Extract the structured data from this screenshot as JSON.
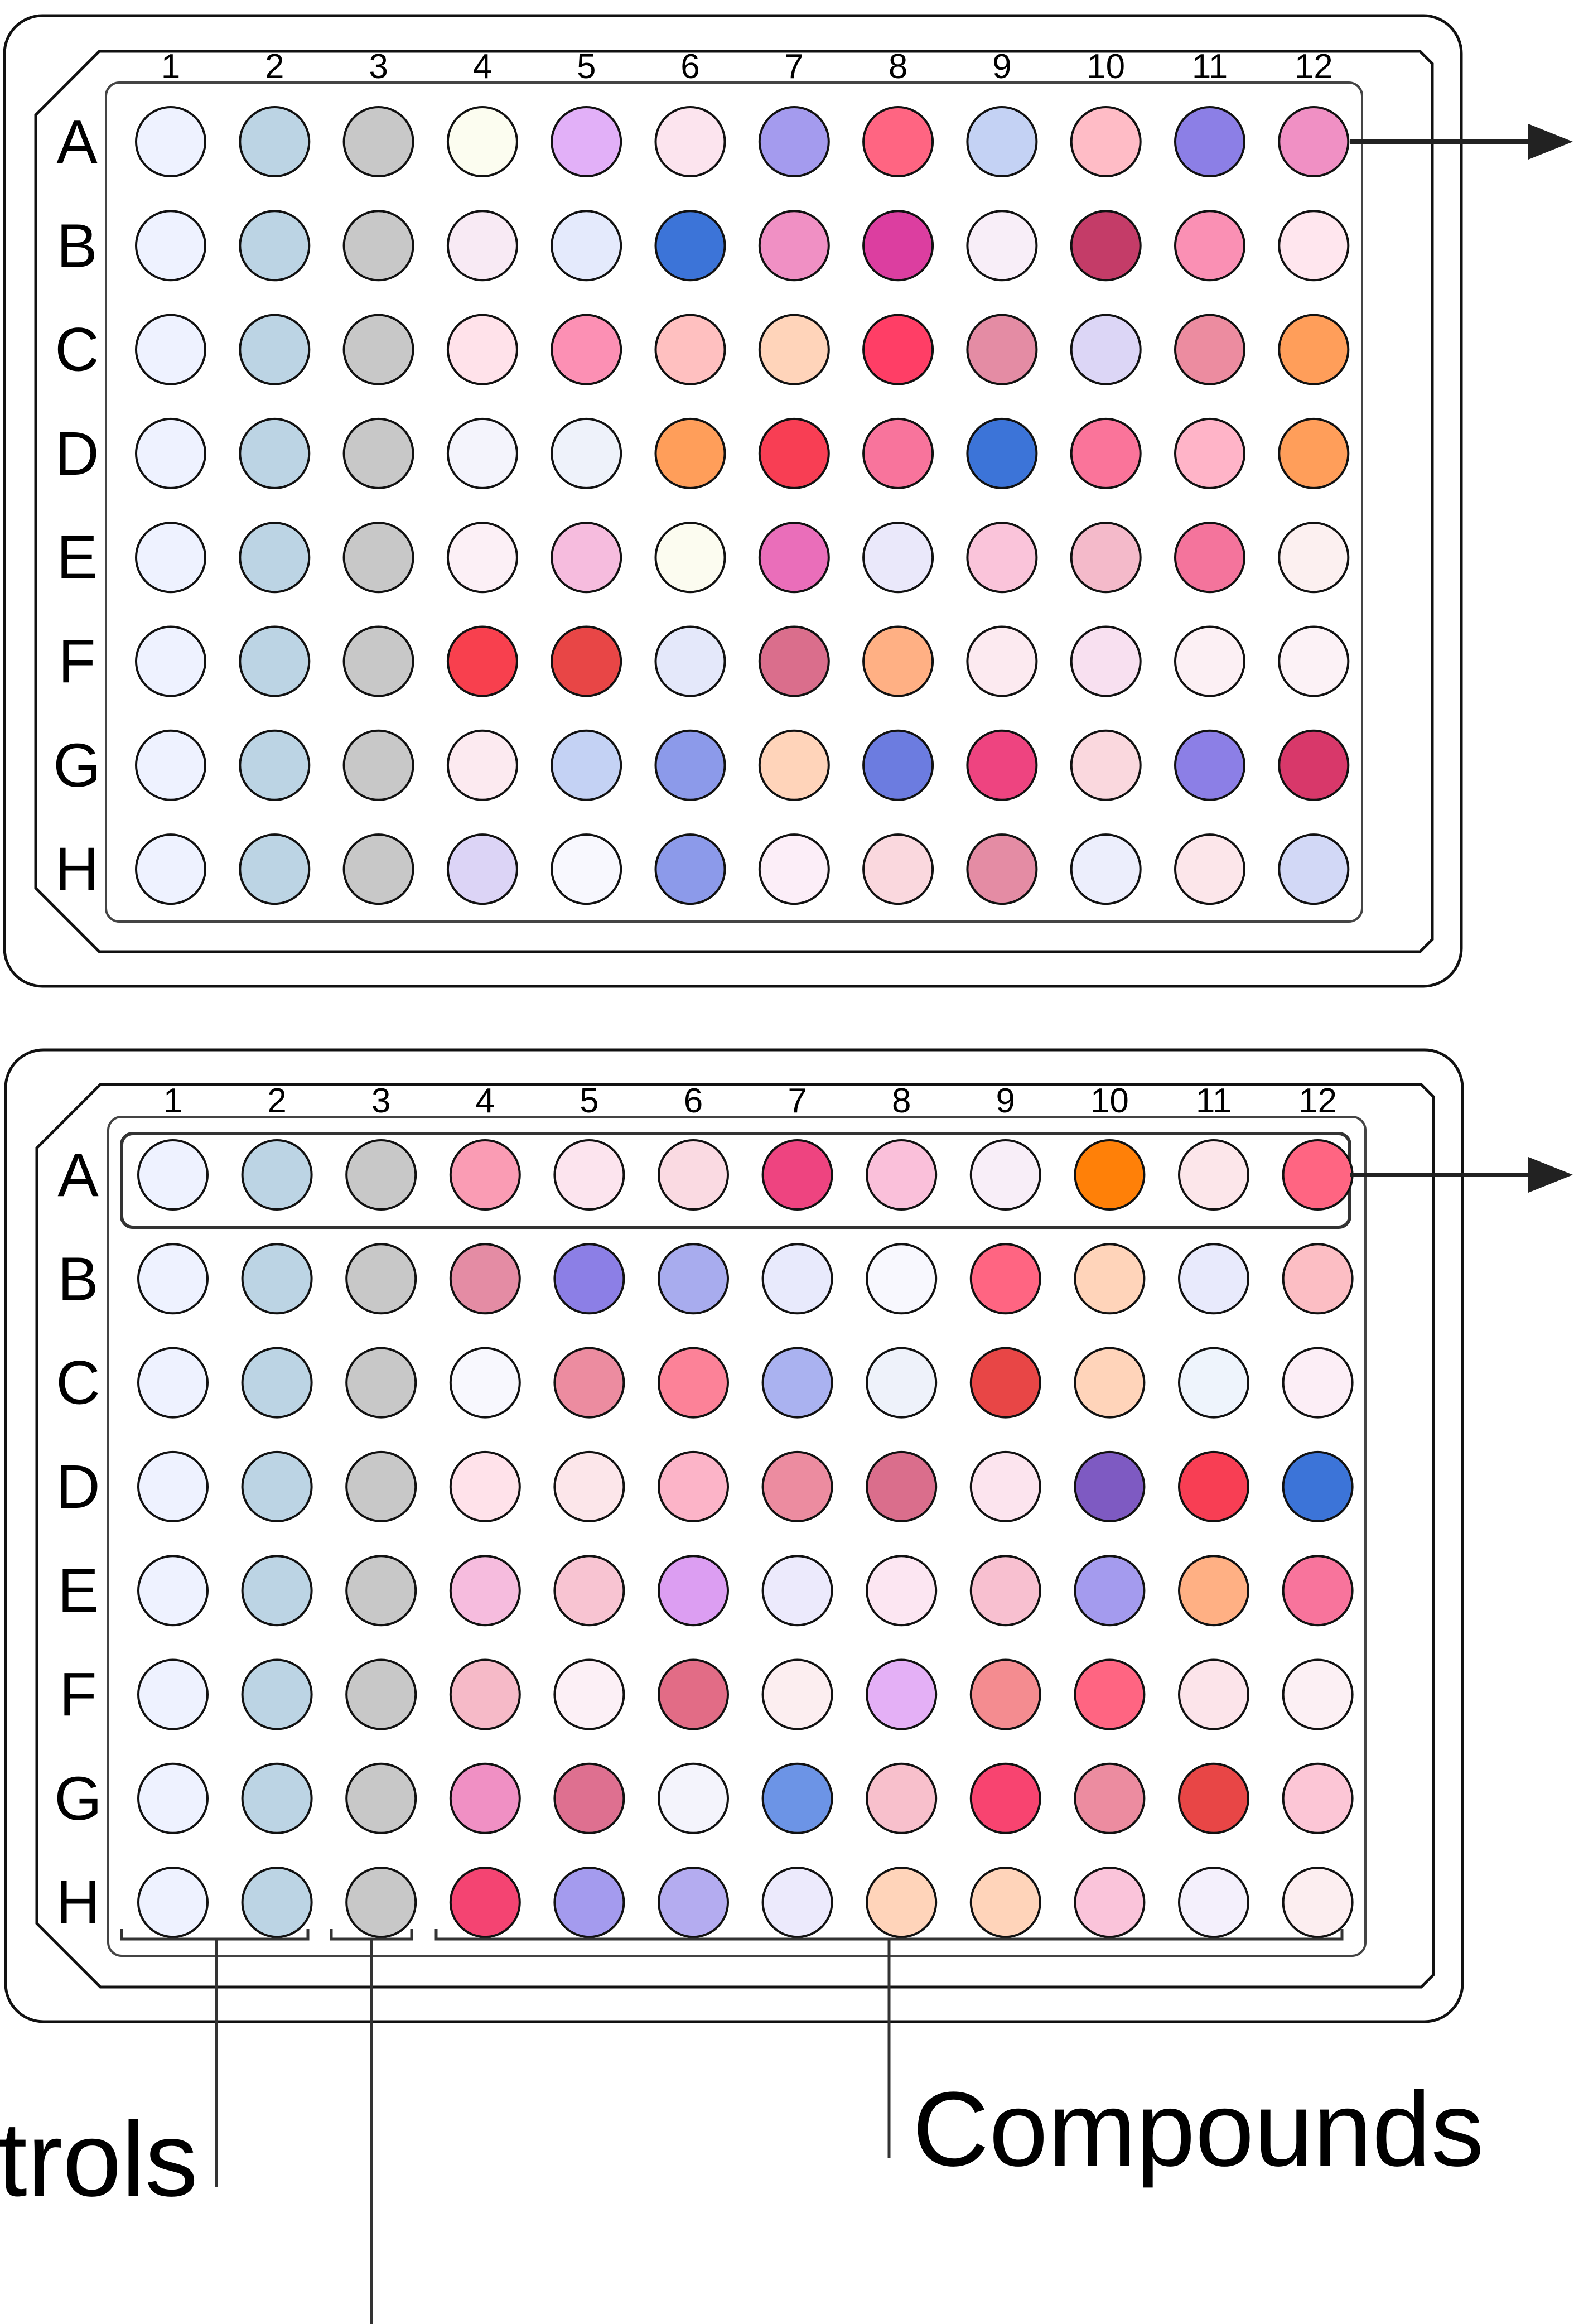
{
  "plates": [
    {
      "name": "plate-top",
      "column_labels": [
        "1",
        "2",
        "3",
        "4",
        "5",
        "6",
        "7",
        "8",
        "9",
        "10",
        "11",
        "12"
      ],
      "row_labels": [
        "A",
        "B",
        "C",
        "D",
        "E",
        "F",
        "G",
        "H"
      ],
      "wells": [
        [
          "#EEF2FF",
          "#BCD4E4",
          "#C8C8C8",
          "#FCFDF0",
          "#E2B0F8",
          "#FCE4EE",
          "#A49BEE",
          "#FF6582",
          "#C4D2F4",
          "#FFBCC6",
          "#8C7FE6",
          "#F090C4"
        ],
        [
          "#EEF2FF",
          "#BCD4E4",
          "#C8C8C8",
          "#F8EAF4",
          "#E4EAFC",
          "#3C74D8",
          "#F090C4",
          "#DC3EA0",
          "#F8EEF8",
          "#C43C68",
          "#FA90B4",
          "#FFE6EE"
        ],
        [
          "#EEF2FF",
          "#BCD4E4",
          "#C8C8C8",
          "#FFE2EA",
          "#FC90B4",
          "#FFC0C0",
          "#FFD4BA",
          "#FF3E66",
          "#E48CA4",
          "#DCD6F6",
          "#EC8CA0",
          "#FF9E5A"
        ],
        [
          "#EEF2FF",
          "#BCD4E4",
          "#C8C8C8",
          "#F4F4FC",
          "#EEF2FA",
          "#FF9E5A",
          "#F83E54",
          "#F8749C",
          "#3C74D8",
          "#FA749A",
          "#FFB4C8",
          "#FF9E5A"
        ],
        [
          "#EEF2FF",
          "#BCD4E4",
          "#C8C8C8",
          "#FCF0F6",
          "#F6BCDE",
          "#FCFCF0",
          "#EA6EBA",
          "#EAE8FA",
          "#FAC4DA",
          "#F4BACA",
          "#F4749C",
          "#FCF0F0"
        ],
        [
          "#EEF2FF",
          "#BCD4E4",
          "#C8C8C8",
          "#F8404E",
          "#E84646",
          "#E4E8FA",
          "#DA6E8C",
          "#FFB084",
          "#FCEAF0",
          "#F8E0F0",
          "#FCF0F4",
          "#FCF2F6"
        ],
        [
          "#EEF2FF",
          "#BCD4E4",
          "#C8C8C8",
          "#FCEAF0",
          "#C4D2F4",
          "#8C9AEA",
          "#FFD4BA",
          "#6C7CE0",
          "#EE4480",
          "#FAD8DE",
          "#8C7FE6",
          "#D8386A"
        ],
        [
          "#EEF2FF",
          "#BCD4E4",
          "#C8C8C8",
          "#DCD4F6",
          "#F8F8FE",
          "#8C9AEA",
          "#FCEEF8",
          "#FAD8DE",
          "#E48CA4",
          "#ECEEFC",
          "#FCE6EA",
          "#D2D8F6"
        ]
      ]
    },
    {
      "name": "plate-bottom",
      "column_labels": [
        "1",
        "2",
        "3",
        "4",
        "5",
        "6",
        "7",
        "8",
        "9",
        "10",
        "11",
        "12"
      ],
      "row_labels": [
        "A",
        "B",
        "C",
        "D",
        "E",
        "F",
        "G",
        "H"
      ],
      "wells": [
        [
          "#EEF2FF",
          "#BCD4E4",
          "#C8C8C8",
          "#FA9CB4",
          "#FCE4EE",
          "#FADAE2",
          "#EE4480",
          "#FAC0DA",
          "#F8EEF8",
          "#FF8008",
          "#FCE6EA",
          "#FF6582"
        ],
        [
          "#EEF2FF",
          "#BCD4E4",
          "#C8C8C8",
          "#E48CA4",
          "#8C7FE6",
          "#A8ACEE",
          "#E8EAFC",
          "#F8F8FE",
          "#FF6582",
          "#FFD4BA",
          "#E8EAFC",
          "#FCBEC4"
        ],
        [
          "#EEF2FF",
          "#BCD4E4",
          "#C8C8C8",
          "#F8F8FE",
          "#EC8CA0",
          "#FC8298",
          "#AAB2F0",
          "#EEF2FA",
          "#E84646",
          "#FFD4BA",
          "#EEF4FC",
          "#FCEEF6"
        ],
        [
          "#EEF2FF",
          "#BCD4E4",
          "#C8C8C8",
          "#FFE2EA",
          "#FCE6EA",
          "#FCB4C8",
          "#EC8CA0",
          "#DA6E8C",
          "#FCE4EE",
          "#7E5AC2",
          "#F83E54",
          "#3C74D8"
        ],
        [
          "#EEF2FF",
          "#BCD4E4",
          "#C8C8C8",
          "#F6BCDE",
          "#F8C4D2",
          "#DC9EF2",
          "#ECEAFC",
          "#FCE6F2",
          "#F8C0D0",
          "#A49BEE",
          "#FFB084",
          "#F8749C"
        ],
        [
          "#EEF2FF",
          "#BCD4E4",
          "#C8C8C8",
          "#F6BAC8",
          "#FCF0F6",
          "#E26C86",
          "#FCEEF0",
          "#E4B0F6",
          "#F48C90",
          "#FF6582",
          "#FCE4EA",
          "#FCF0F4"
        ],
        [
          "#EEF2FF",
          "#BCD4E4",
          "#C8C8C8",
          "#F090C4",
          "#DE7090",
          "#F4F4FC",
          "#6C94E6",
          "#F8C0CC",
          "#F84470",
          "#EC8CA0",
          "#E84646",
          "#FCC6D6"
        ],
        [
          "#EEF2FF",
          "#BCD4E4",
          "#C8C8C8",
          "#F44472",
          "#A49BEE",
          "#B4ACF0",
          "#ECEAFC",
          "#FFD4BA",
          "#FFD4BA",
          "#FAC4DA",
          "#F4F0FC",
          "#FCEEF0"
        ]
      ]
    }
  ],
  "labels": {
    "controls_text": "trols",
    "compounds_text": "Compounds"
  },
  "colors": {
    "outline": "#111111",
    "plate_fill": "#FFFFFF"
  }
}
